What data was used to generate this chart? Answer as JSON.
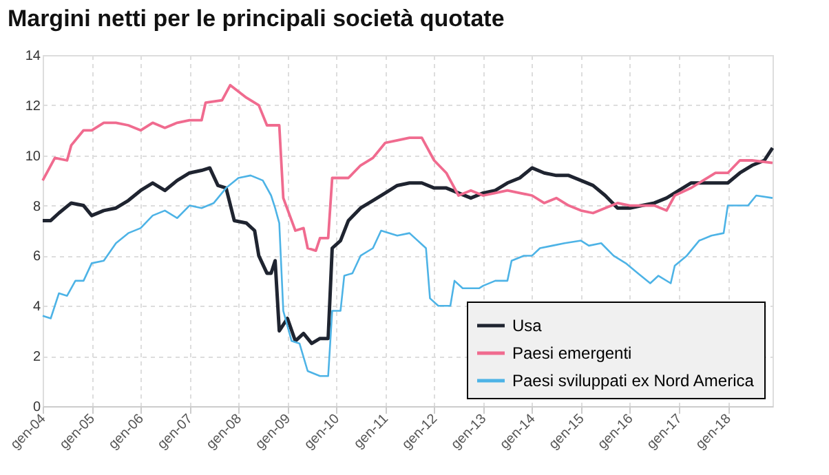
{
  "chart_data": {
    "type": "line",
    "title": "Margini netti per le principali società quotate",
    "xlim": [
      "2004-01",
      "2018-12"
    ],
    "xticks": [
      {
        "value": "2004-01",
        "label": "gen-04"
      },
      {
        "value": "2005-01",
        "label": "gen-05"
      },
      {
        "value": "2006-01",
        "label": "gen-06"
      },
      {
        "value": "2007-01",
        "label": "gen-07"
      },
      {
        "value": "2008-01",
        "label": "gen-08"
      },
      {
        "value": "2009-01",
        "label": "gen-09"
      },
      {
        "value": "2010-01",
        "label": "gen-10"
      },
      {
        "value": "2011-01",
        "label": "gen-11"
      },
      {
        "value": "2012-01",
        "label": "gen-12"
      },
      {
        "value": "2013-01",
        "label": "gen-13"
      },
      {
        "value": "2014-01",
        "label": "gen-14"
      },
      {
        "value": "2015-01",
        "label": "gen-15"
      },
      {
        "value": "2016-01",
        "label": "gen-16"
      },
      {
        "value": "2017-01",
        "label": "gen-17"
      },
      {
        "value": "2018-01",
        "label": "gen-18"
      }
    ],
    "ylim": [
      0,
      14
    ],
    "yticks": [
      0,
      2,
      4,
      6,
      8,
      10,
      12,
      14
    ],
    "grid": true,
    "legend": "bottom right",
    "line_style": "solid",
    "marker": "none",
    "series": [
      {
        "name": "Usa",
        "color": "#1f2430",
        "x": [
          "2004-01",
          "2004-03",
          "2004-05",
          "2004-08",
          "2004-11",
          "2005-01",
          "2005-04",
          "2005-07",
          "2005-10",
          "2006-01",
          "2006-04",
          "2006-07",
          "2006-10",
          "2007-01",
          "2007-04",
          "2007-06",
          "2007-08",
          "2007-10",
          "2007-12",
          "2008-03",
          "2008-05",
          "2008-06",
          "2008-08",
          "2008-09",
          "2008-10",
          "2008-11",
          "2009-01",
          "2009-03",
          "2009-05",
          "2009-07",
          "2009-09",
          "2009-11",
          "2009-12",
          "2010-02",
          "2010-04",
          "2010-07",
          "2010-10",
          "2011-01",
          "2011-04",
          "2011-07",
          "2011-10",
          "2012-01",
          "2012-04",
          "2012-07",
          "2012-10",
          "2013-01",
          "2013-04",
          "2013-07",
          "2013-10",
          "2014-01",
          "2014-04",
          "2014-07",
          "2014-10",
          "2015-01",
          "2015-04",
          "2015-07",
          "2015-10",
          "2016-01",
          "2016-04",
          "2016-07",
          "2016-10",
          "2017-01",
          "2017-04",
          "2017-07",
          "2017-10",
          "2018-01",
          "2018-04",
          "2018-07",
          "2018-10",
          "2018-12"
        ],
        "values": [
          7.4,
          7.4,
          7.7,
          8.1,
          8.0,
          7.6,
          7.8,
          7.9,
          8.2,
          8.6,
          8.9,
          8.6,
          9.0,
          9.3,
          9.4,
          9.5,
          8.8,
          8.7,
          7.4,
          7.3,
          7.0,
          6.0,
          5.3,
          5.3,
          5.8,
          3.0,
          3.5,
          2.6,
          2.9,
          2.5,
          2.7,
          2.7,
          6.3,
          6.6,
          7.4,
          7.9,
          8.2,
          8.5,
          8.8,
          8.9,
          8.9,
          8.7,
          8.7,
          8.5,
          8.3,
          8.5,
          8.6,
          8.9,
          9.1,
          9.5,
          9.3,
          9.2,
          9.2,
          9.0,
          8.8,
          8.4,
          7.9,
          7.9,
          8.0,
          8.1,
          8.3,
          8.6,
          8.9,
          8.9,
          8.9,
          8.9,
          9.3,
          9.6,
          9.8,
          10.3
        ]
      },
      {
        "name": "Paesi emergenti",
        "color": "#f06b8f",
        "x": [
          "2004-01",
          "2004-04",
          "2004-07",
          "2004-08",
          "2004-11",
          "2005-01",
          "2005-04",
          "2005-07",
          "2005-10",
          "2006-01",
          "2006-04",
          "2006-07",
          "2006-10",
          "2007-01",
          "2007-04",
          "2007-05",
          "2007-09",
          "2007-11",
          "2008-03",
          "2008-06",
          "2008-08",
          "2008-11",
          "2008-12",
          "2009-03",
          "2009-05",
          "2009-06",
          "2009-08",
          "2009-09",
          "2009-11",
          "2009-12",
          "2010-04",
          "2010-07",
          "2010-10",
          "2011-01",
          "2011-04",
          "2011-07",
          "2011-10",
          "2012-01",
          "2012-04",
          "2012-07",
          "2012-10",
          "2013-01",
          "2013-04",
          "2013-07",
          "2013-10",
          "2014-01",
          "2014-04",
          "2014-07",
          "2014-10",
          "2015-01",
          "2015-04",
          "2015-07",
          "2015-10",
          "2016-01",
          "2016-04",
          "2016-07",
          "2016-10",
          "2016-12",
          "2017-04",
          "2017-07",
          "2017-10",
          "2018-01",
          "2018-04",
          "2018-07",
          "2018-12"
        ],
        "values": [
          9.0,
          9.9,
          9.8,
          10.4,
          11.0,
          11.0,
          11.3,
          11.3,
          11.2,
          11.0,
          11.3,
          11.1,
          11.3,
          11.4,
          11.4,
          12.1,
          12.2,
          12.8,
          12.3,
          12.0,
          11.2,
          11.2,
          8.3,
          7.0,
          7.1,
          6.3,
          6.2,
          6.7,
          6.7,
          9.1,
          9.1,
          9.6,
          9.9,
          10.5,
          10.6,
          10.7,
          10.7,
          9.8,
          9.3,
          8.4,
          8.6,
          8.4,
          8.5,
          8.6,
          8.5,
          8.4,
          8.1,
          8.3,
          8.0,
          7.8,
          7.7,
          7.9,
          8.1,
          8.0,
          8.0,
          8.0,
          7.8,
          8.4,
          8.7,
          9.0,
          9.3,
          9.3,
          9.8,
          9.8,
          9.7
        ]
      },
      {
        "name": "Paesi sviluppati ex Nord America",
        "color": "#4db3e6",
        "x": [
          "2004-01",
          "2004-03",
          "2004-05",
          "2004-07",
          "2004-09",
          "2004-11",
          "2005-01",
          "2005-04",
          "2005-07",
          "2005-10",
          "2006-01",
          "2006-04",
          "2006-07",
          "2006-10",
          "2007-01",
          "2007-04",
          "2007-07",
          "2007-10",
          "2008-01",
          "2008-04",
          "2008-07",
          "2008-09",
          "2008-10",
          "2008-11",
          "2008-12",
          "2009-02",
          "2009-04",
          "2009-06",
          "2009-09",
          "2009-11",
          "2009-12",
          "2010-02",
          "2010-03",
          "2010-05",
          "2010-07",
          "2010-10",
          "2010-12",
          "2011-04",
          "2011-07",
          "2011-11",
          "2011-12",
          "2012-02",
          "2012-05",
          "2012-06",
          "2012-08",
          "2012-12",
          "2013-01",
          "2013-04",
          "2013-07",
          "2013-08",
          "2013-11",
          "2014-01",
          "2014-03",
          "2014-06",
          "2014-09",
          "2015-01",
          "2015-03",
          "2015-06",
          "2015-09",
          "2015-12",
          "2016-03",
          "2016-06",
          "2016-08",
          "2016-11",
          "2016-12",
          "2017-03",
          "2017-06",
          "2017-09",
          "2017-12",
          "2018-01",
          "2018-06",
          "2018-08",
          "2018-12"
        ],
        "values": [
          3.6,
          3.5,
          4.5,
          4.4,
          5.0,
          5.0,
          5.7,
          5.8,
          6.5,
          6.9,
          7.1,
          7.6,
          7.8,
          7.5,
          8.0,
          7.9,
          8.1,
          8.7,
          9.1,
          9.2,
          9.0,
          8.4,
          7.9,
          7.3,
          3.8,
          2.6,
          2.5,
          1.4,
          1.2,
          1.2,
          3.8,
          3.8,
          5.2,
          5.3,
          6.0,
          6.3,
          7.0,
          6.8,
          6.9,
          6.3,
          4.3,
          4.0,
          4.0,
          5.0,
          4.7,
          4.7,
          4.8,
          5.0,
          5.0,
          5.8,
          6.0,
          6.0,
          6.3,
          6.4,
          6.5,
          6.6,
          6.4,
          6.5,
          6.0,
          5.7,
          5.3,
          4.9,
          5.2,
          4.9,
          5.6,
          6.0,
          6.6,
          6.8,
          6.9,
          8.0,
          8.0,
          8.4,
          8.3
        ]
      }
    ]
  }
}
